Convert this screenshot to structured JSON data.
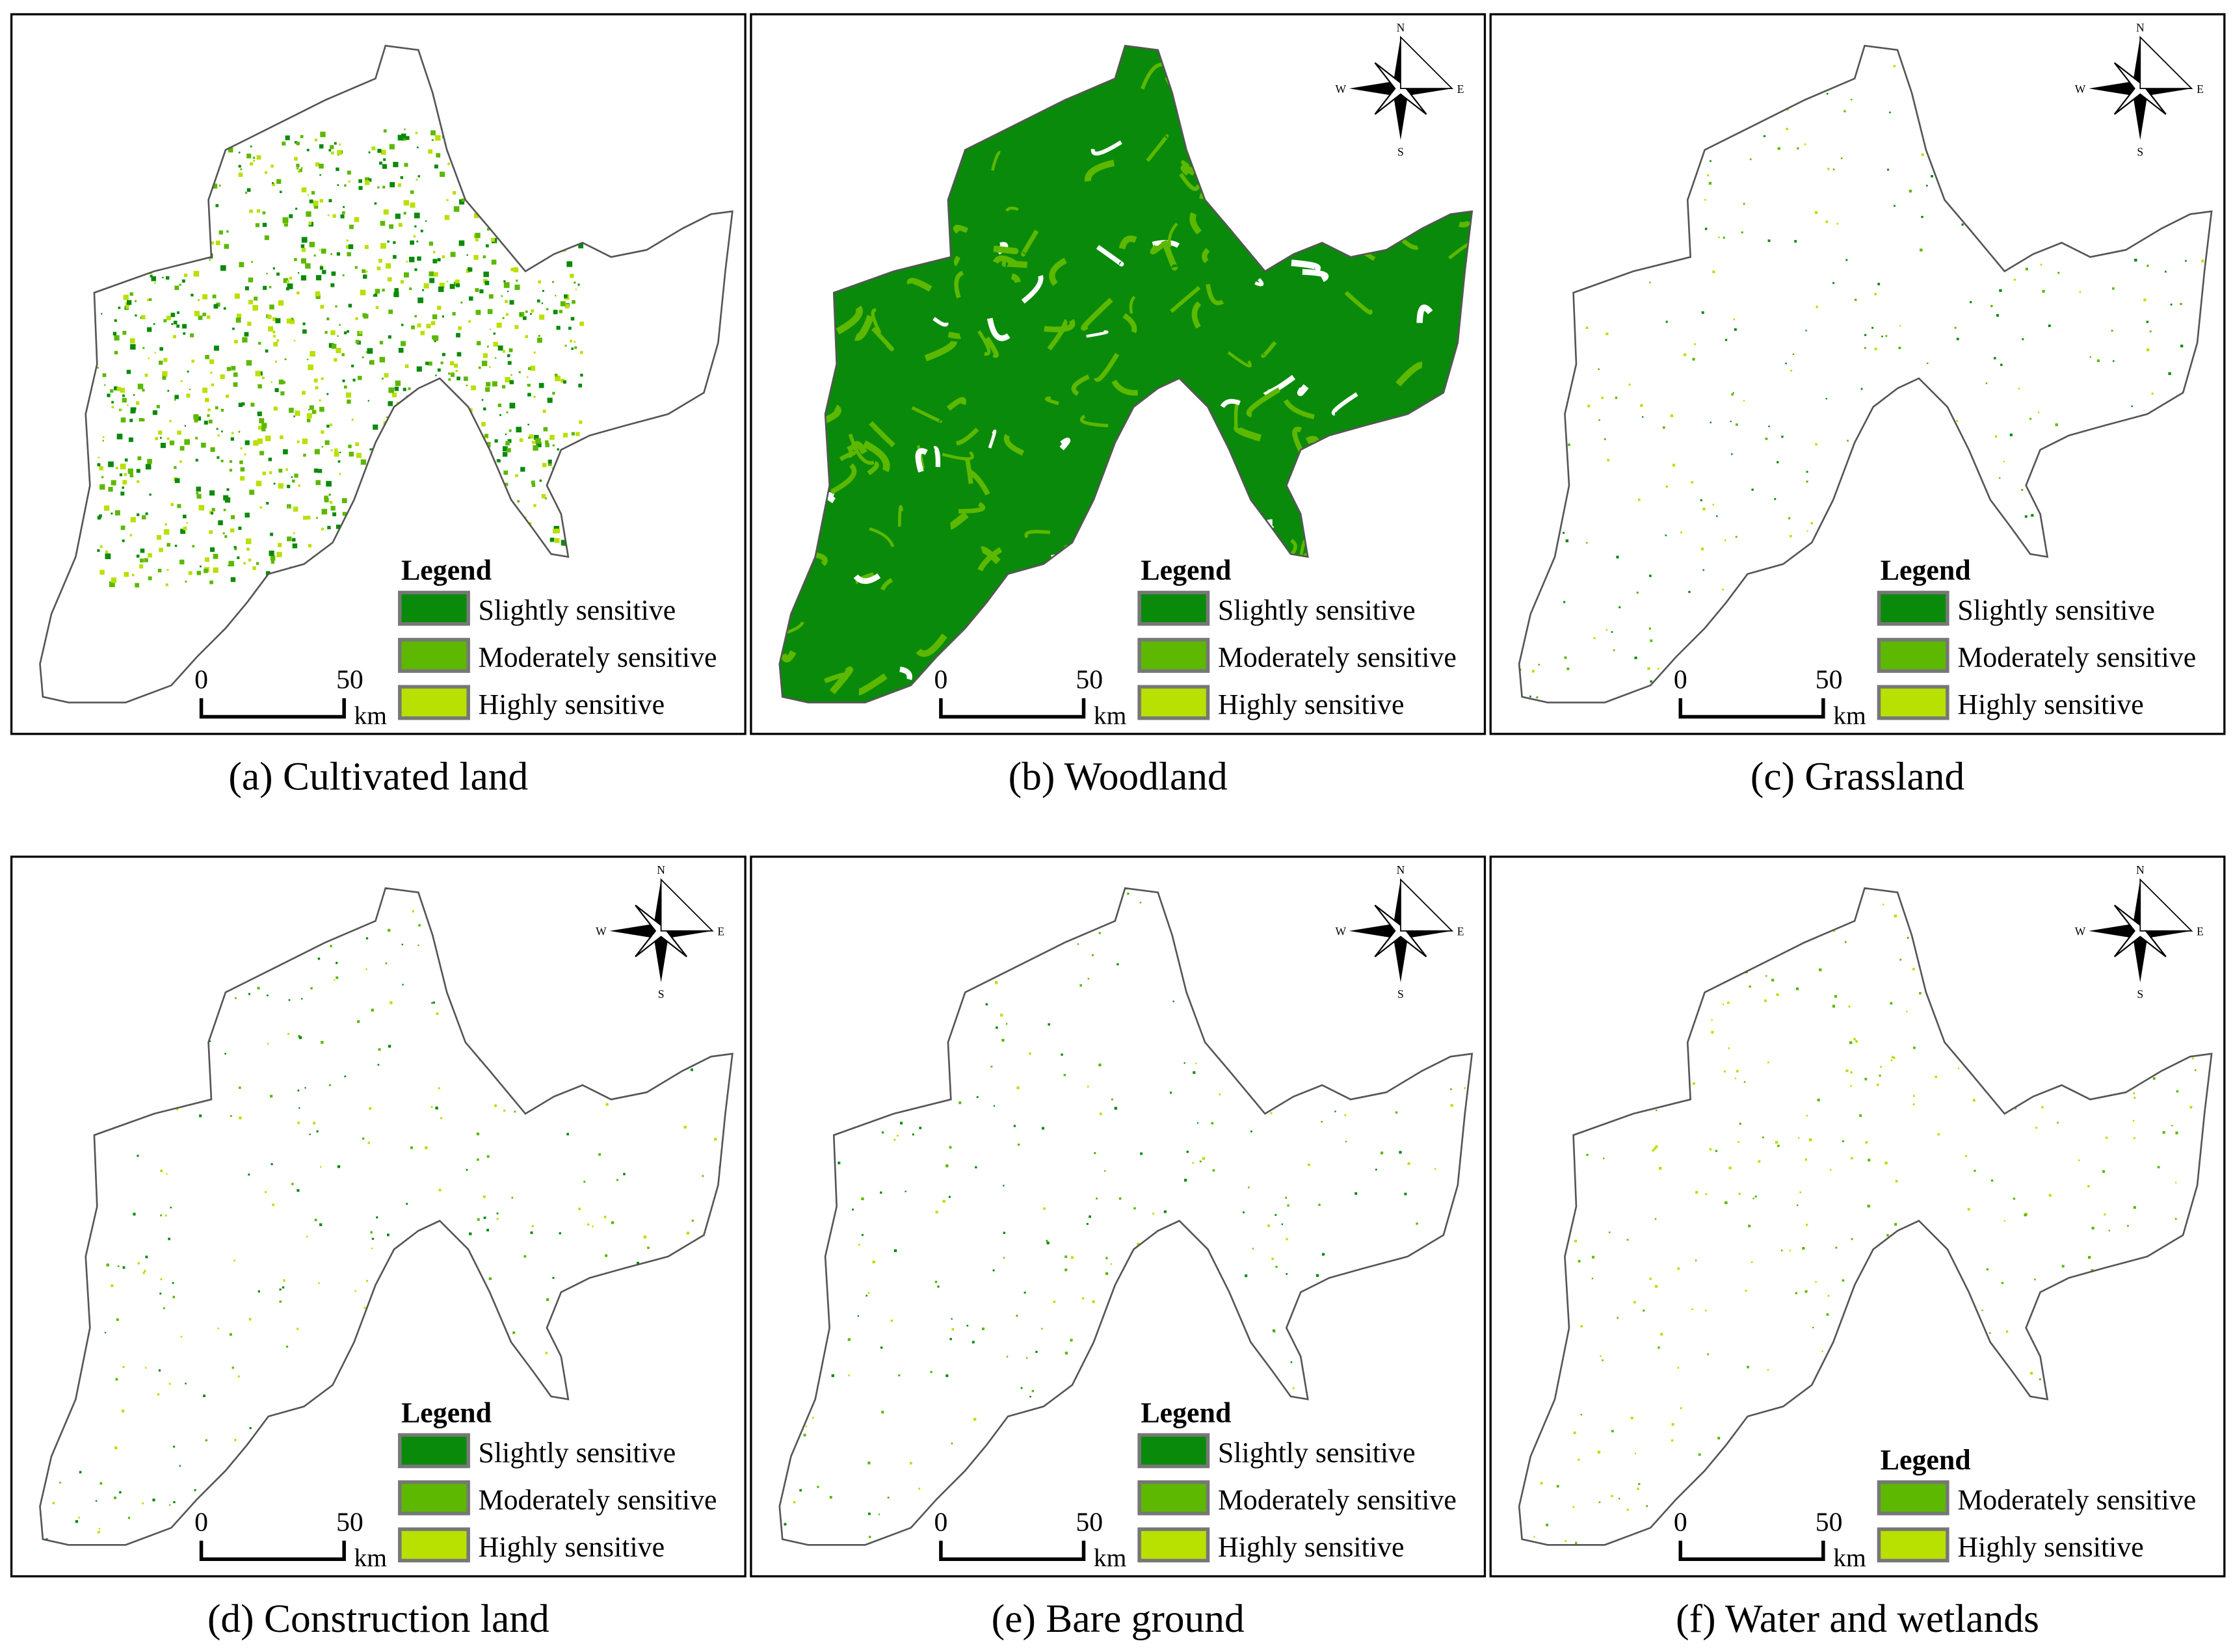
{
  "panels": [
    {
      "caption": "(a) Cultivated land",
      "fill": "specks",
      "legend": {
        "title": "Legend",
        "items": [
          {
            "label": "Slightly sensitive",
            "color": "#0a8a0a"
          },
          {
            "label": "Moderately sensitive",
            "color": "#5cb800"
          },
          {
            "label": "Highly sensitive",
            "color": "#b8e000"
          }
        ]
      },
      "scale": {
        "start": 0,
        "end": 50,
        "unit": "km"
      }
    },
    {
      "caption": "(b) Woodland",
      "fill": "solid",
      "legend": {
        "title": "Legend",
        "items": [
          {
            "label": "Slightly sensitive",
            "color": "#0a8a0a"
          },
          {
            "label": "Moderately sensitive",
            "color": "#5cb800"
          },
          {
            "label": "Highly sensitive",
            "color": "#b8e000"
          }
        ]
      },
      "scale": {
        "start": 0,
        "end": 50,
        "unit": "km"
      },
      "compass": {
        "n": "N",
        "s": "S",
        "e": "E",
        "w": "W"
      }
    },
    {
      "caption": "(c) Grassland",
      "fill": "sparse",
      "legend": {
        "title": "Legend",
        "items": [
          {
            "label": "Slightly sensitive",
            "color": "#0a8a0a"
          },
          {
            "label": "Moderately sensitive",
            "color": "#5cb800"
          },
          {
            "label": "Highly sensitive",
            "color": "#b8e000"
          }
        ]
      },
      "scale": {
        "start": 0,
        "end": 50,
        "unit": "km"
      },
      "compass": {
        "n": "N",
        "s": "S",
        "e": "E",
        "w": "W"
      }
    },
    {
      "caption": "(d) Construction land",
      "fill": "sparse",
      "legend": {
        "title": "Legend",
        "items": [
          {
            "label": "Slightly sensitive",
            "color": "#0a8a0a"
          },
          {
            "label": "Moderately sensitive",
            "color": "#5cb800"
          },
          {
            "label": "Highly sensitive",
            "color": "#b8e000"
          }
        ]
      },
      "scale": {
        "start": 0,
        "end": 50,
        "unit": "km"
      },
      "compass": {
        "n": "N",
        "s": "S",
        "e": "E",
        "w": "W"
      }
    },
    {
      "caption": "(e) Bare ground",
      "fill": "sparse",
      "legend": {
        "title": "Legend",
        "items": [
          {
            "label": "Slightly sensitive",
            "color": "#0a8a0a"
          },
          {
            "label": "Moderately sensitive",
            "color": "#5cb800"
          },
          {
            "label": "Highly sensitive",
            "color": "#b8e000"
          }
        ]
      },
      "scale": {
        "start": 0,
        "end": 50,
        "unit": "km"
      },
      "compass": {
        "n": "N",
        "s": "S",
        "e": "E",
        "w": "W"
      }
    },
    {
      "caption": "(f) Water and wetlands",
      "fill": "sparse",
      "legend": {
        "title": "Legend",
        "items": [
          {
            "label": "Moderately sensitive",
            "color": "#5cb800"
          },
          {
            "label": "Highly sensitive",
            "color": "#b8e000"
          }
        ]
      },
      "scale": {
        "start": 0,
        "end": 50,
        "unit": "km"
      },
      "compass": {
        "n": "N",
        "s": "S",
        "e": "E",
        "w": "W"
      }
    }
  ]
}
